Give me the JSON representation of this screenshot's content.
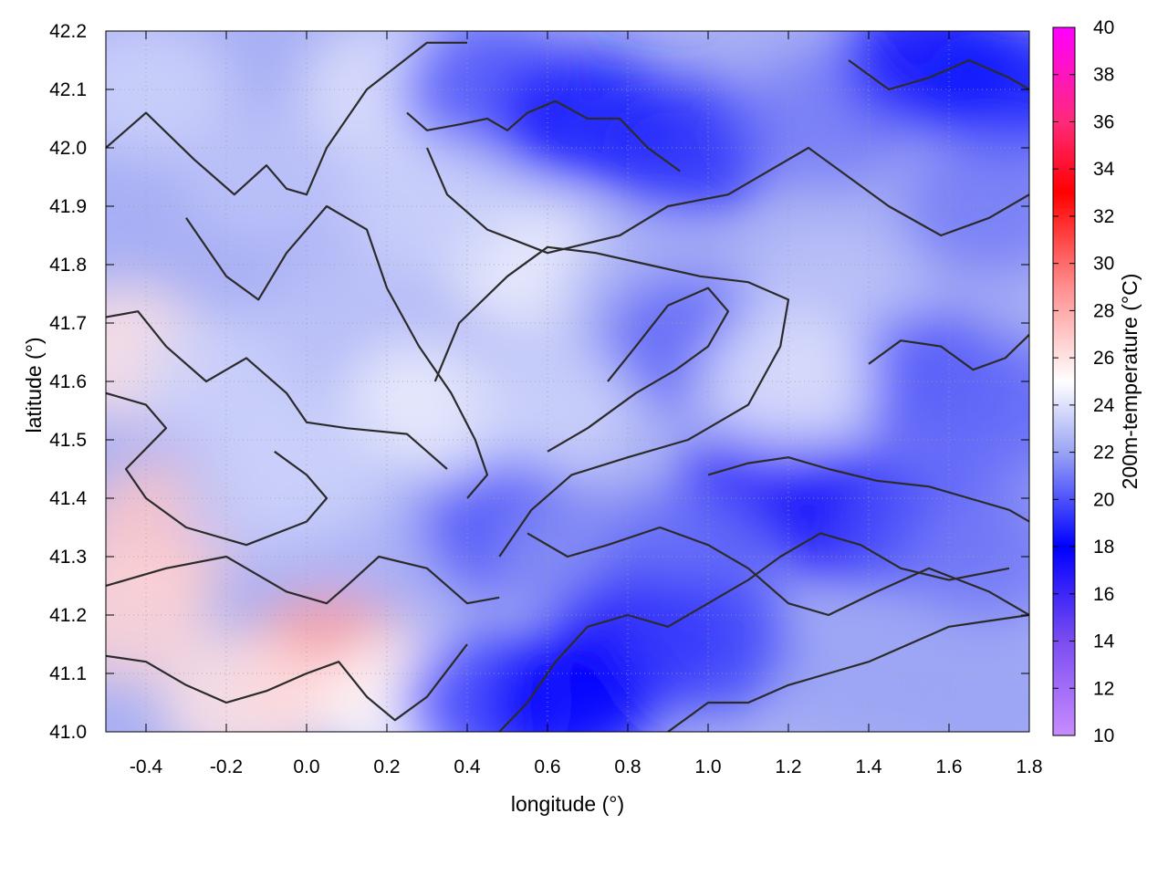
{
  "chart_data": {
    "type": "heatmap",
    "title": "",
    "xlabel": "longitude (°)",
    "ylabel": "latitude (°)",
    "colorbar_label": "200m-temperature (°C)",
    "xlim": [
      -0.5,
      1.8
    ],
    "ylim": [
      41.0,
      42.2
    ],
    "clim": [
      10,
      40
    ],
    "grid": true,
    "x_ticks": [
      "-0.4",
      "-0.2",
      "0.0",
      "0.2",
      "0.4",
      "0.6",
      "0.8",
      "1.0",
      "1.2",
      "1.4",
      "1.6",
      "1.8"
    ],
    "y_ticks": [
      "41.0",
      "41.1",
      "41.2",
      "41.3",
      "41.4",
      "41.5",
      "41.6",
      "41.7",
      "41.8",
      "41.9",
      "42.0",
      "42.1",
      "42.2"
    ],
    "colorbar_ticks": [
      "10",
      "12",
      "14",
      "16",
      "18",
      "20",
      "22",
      "24",
      "26",
      "28",
      "30",
      "32",
      "34",
      "36",
      "38",
      "40"
    ],
    "colormap": [
      {
        "value": 10,
        "color": "#c88cff"
      },
      {
        "value": 14,
        "color": "#7b4df0"
      },
      {
        "value": 18,
        "color": "#0000ff"
      },
      {
        "value": 22,
        "color": "#9aa4f4"
      },
      {
        "value": 25,
        "color": "#ffffff"
      },
      {
        "value": 29,
        "color": "#ff8e8e"
      },
      {
        "value": 33,
        "color": "#ff0000"
      },
      {
        "value": 36,
        "color": "#ff2a7a"
      },
      {
        "value": 40,
        "color": "#ff00ff"
      }
    ],
    "temperature_samples": [
      {
        "lon": -0.4,
        "lat": 42.1,
        "t": 23.5
      },
      {
        "lon": -0.1,
        "lat": 41.95,
        "t": 23.0
      },
      {
        "lon": 0.2,
        "lat": 42.1,
        "t": 24.0
      },
      {
        "lon": 0.45,
        "lat": 42.1,
        "t": 20.0
      },
      {
        "lon": 0.7,
        "lat": 42.05,
        "t": 18.5
      },
      {
        "lon": 0.95,
        "lat": 42.0,
        "t": 19.0
      },
      {
        "lon": 1.3,
        "lat": 42.05,
        "t": 21.0
      },
      {
        "lon": 1.55,
        "lat": 42.15,
        "t": 17.5
      },
      {
        "lon": 1.75,
        "lat": 42.1,
        "t": 18.5
      },
      {
        "lon": 1.7,
        "lat": 41.9,
        "t": 21.0
      },
      {
        "lon": 0.55,
        "lat": 41.8,
        "t": 24.5
      },
      {
        "lon": 0.85,
        "lat": 41.75,
        "t": 22.5
      },
      {
        "lon": 0.95,
        "lat": 41.67,
        "t": 20.5
      },
      {
        "lon": 1.3,
        "lat": 41.75,
        "t": 23.0
      },
      {
        "lon": 1.55,
        "lat": 41.6,
        "t": 20.0
      },
      {
        "lon": 1.75,
        "lat": 41.55,
        "t": 20.5
      },
      {
        "lon": -0.45,
        "lat": 41.65,
        "t": 26.0
      },
      {
        "lon": -0.2,
        "lat": 41.6,
        "t": 23.5
      },
      {
        "lon": 0.1,
        "lat": 41.7,
        "t": 23.0
      },
      {
        "lon": 0.3,
        "lat": 41.55,
        "t": 24.5
      },
      {
        "lon": 0.6,
        "lat": 41.55,
        "t": 23.5
      },
      {
        "lon": 1.15,
        "lat": 41.42,
        "t": 17.0
      },
      {
        "lon": 1.35,
        "lat": 41.37,
        "t": 17.0
      },
      {
        "lon": 1.55,
        "lat": 41.35,
        "t": 20.0
      },
      {
        "lon": 1.7,
        "lat": 41.3,
        "t": 21.0
      },
      {
        "lon": -0.35,
        "lat": 41.35,
        "t": 27.0
      },
      {
        "lon": -0.45,
        "lat": 41.2,
        "t": 26.5
      },
      {
        "lon": -0.1,
        "lat": 41.4,
        "t": 23.0
      },
      {
        "lon": 0.2,
        "lat": 41.35,
        "t": 22.5
      },
      {
        "lon": 0.5,
        "lat": 41.35,
        "t": 20.0
      },
      {
        "lon": 0.7,
        "lat": 41.3,
        "t": 21.5
      },
      {
        "lon": 0.95,
        "lat": 41.3,
        "t": 20.5
      },
      {
        "lon": 0.8,
        "lat": 41.15,
        "t": 17.0
      },
      {
        "lon": 1.0,
        "lat": 41.15,
        "t": 19.5
      },
      {
        "lon": 0.05,
        "lat": 41.12,
        "t": 28.5
      },
      {
        "lon": -0.15,
        "lat": 41.05,
        "t": 26.0
      },
      {
        "lon": 0.25,
        "lat": 41.05,
        "t": 25.0
      },
      {
        "lon": 0.45,
        "lat": 41.05,
        "t": 19.5
      },
      {
        "lon": 0.65,
        "lat": 41.05,
        "t": 18.0
      },
      {
        "lon": 1.4,
        "lat": 41.1,
        "t": 22.0
      },
      {
        "lon": 1.7,
        "lat": 41.05,
        "t": 22.0
      },
      {
        "lon": 1.2,
        "lat": 41.6,
        "t": 24.0
      },
      {
        "lon": 0.3,
        "lat": 41.9,
        "t": 23.5
      },
      {
        "lon": 0.0,
        "lat": 41.45,
        "t": 23.5
      }
    ],
    "contour_lines": [
      [
        [
          -0.5,
          42.0
        ],
        [
          -0.4,
          42.06
        ],
        [
          -0.28,
          41.98
        ],
        [
          -0.18,
          41.92
        ],
        [
          -0.1,
          41.97
        ],
        [
          -0.05,
          41.93
        ],
        [
          0.0,
          41.92
        ],
        [
          0.05,
          42.0
        ],
        [
          0.15,
          42.1
        ],
        [
          0.3,
          42.18
        ],
        [
          0.4,
          42.18
        ]
      ],
      [
        [
          -0.3,
          41.88
        ],
        [
          -0.2,
          41.78
        ],
        [
          -0.12,
          41.74
        ],
        [
          -0.05,
          41.82
        ],
        [
          0.05,
          41.9
        ],
        [
          0.15,
          41.86
        ],
        [
          0.2,
          41.76
        ],
        [
          0.28,
          41.66
        ],
        [
          0.36,
          41.58
        ],
        [
          0.42,
          41.5
        ],
        [
          0.45,
          41.44
        ],
        [
          0.4,
          41.4
        ]
      ],
      [
        [
          -0.5,
          41.71
        ],
        [
          -0.42,
          41.72
        ],
        [
          -0.35,
          41.66
        ],
        [
          -0.25,
          41.6
        ],
        [
          -0.15,
          41.64
        ],
        [
          -0.05,
          41.58
        ],
        [
          0.0,
          41.53
        ],
        [
          0.1,
          41.52
        ],
        [
          0.25,
          41.51
        ],
        [
          0.35,
          41.45
        ]
      ],
      [
        [
          -0.5,
          41.58
        ],
        [
          -0.4,
          41.56
        ],
        [
          -0.35,
          41.52
        ],
        [
          -0.45,
          41.45
        ],
        [
          -0.4,
          41.4
        ],
        [
          -0.3,
          41.35
        ],
        [
          -0.15,
          41.32
        ],
        [
          0.0,
          41.36
        ],
        [
          0.05,
          41.4
        ],
        [
          0.0,
          41.44
        ],
        [
          -0.08,
          41.48
        ]
      ],
      [
        [
          -0.5,
          41.25
        ],
        [
          -0.35,
          41.28
        ],
        [
          -0.2,
          41.3
        ],
        [
          -0.05,
          41.24
        ],
        [
          0.05,
          41.22
        ],
        [
          0.1,
          41.25
        ],
        [
          0.18,
          41.3
        ],
        [
          0.3,
          41.28
        ],
        [
          0.4,
          41.22
        ],
        [
          0.48,
          41.23
        ]
      ],
      [
        [
          -0.5,
          41.13
        ],
        [
          -0.4,
          41.12
        ],
        [
          -0.3,
          41.08
        ],
        [
          -0.2,
          41.05
        ],
        [
          -0.1,
          41.07
        ],
        [
          0.0,
          41.1
        ],
        [
          0.08,
          41.12
        ],
        [
          0.15,
          41.06
        ],
        [
          0.22,
          41.02
        ],
        [
          0.3,
          41.06
        ],
        [
          0.4,
          41.15
        ]
      ],
      [
        [
          0.32,
          41.6
        ],
        [
          0.38,
          41.7
        ],
        [
          0.5,
          41.78
        ],
        [
          0.6,
          41.83
        ],
        [
          0.72,
          41.82
        ],
        [
          0.85,
          41.8
        ],
        [
          0.98,
          41.78
        ],
        [
          1.1,
          41.77
        ],
        [
          1.2,
          41.74
        ],
        [
          1.18,
          41.66
        ],
        [
          1.1,
          41.56
        ],
        [
          0.95,
          41.5
        ],
        [
          0.8,
          41.47
        ],
        [
          0.66,
          41.44
        ],
        [
          0.56,
          41.38
        ],
        [
          0.48,
          41.3
        ]
      ],
      [
        [
          0.3,
          42.0
        ],
        [
          0.35,
          41.92
        ],
        [
          0.45,
          41.86
        ],
        [
          0.6,
          41.82
        ],
        [
          0.78,
          41.85
        ],
        [
          0.9,
          41.9
        ],
        [
          1.05,
          41.92
        ],
        [
          1.15,
          41.96
        ],
        [
          1.25,
          42.0
        ],
        [
          1.35,
          41.95
        ],
        [
          1.45,
          41.9
        ],
        [
          1.58,
          41.85
        ],
        [
          1.7,
          41.88
        ],
        [
          1.8,
          41.92
        ]
      ],
      [
        [
          1.0,
          41.44
        ],
        [
          1.1,
          41.46
        ],
        [
          1.2,
          41.47
        ],
        [
          1.3,
          41.45
        ],
        [
          1.42,
          41.43
        ],
        [
          1.55,
          41.42
        ],
        [
          1.65,
          41.4
        ],
        [
          1.75,
          41.38
        ],
        [
          1.8,
          41.36
        ]
      ],
      [
        [
          0.55,
          41.34
        ],
        [
          0.65,
          41.3
        ],
        [
          0.75,
          41.32
        ],
        [
          0.88,
          41.35
        ],
        [
          1.0,
          41.32
        ],
        [
          1.1,
          41.28
        ],
        [
          1.2,
          41.22
        ],
        [
          1.3,
          41.2
        ],
        [
          1.42,
          41.24
        ],
        [
          1.55,
          41.28
        ],
        [
          1.7,
          41.24
        ],
        [
          1.8,
          41.2
        ]
      ],
      [
        [
          0.48,
          41.0
        ],
        [
          0.55,
          41.05
        ],
        [
          0.62,
          41.12
        ],
        [
          0.7,
          41.18
        ],
        [
          0.8,
          41.2
        ],
        [
          0.9,
          41.18
        ],
        [
          1.0,
          41.22
        ],
        [
          1.1,
          41.26
        ],
        [
          1.18,
          41.3
        ],
        [
          1.28,
          41.34
        ],
        [
          1.38,
          41.32
        ],
        [
          1.48,
          41.28
        ],
        [
          1.6,
          41.26
        ],
        [
          1.75,
          41.28
        ]
      ],
      [
        [
          0.9,
          41.0
        ],
        [
          1.0,
          41.05
        ],
        [
          1.1,
          41.05
        ],
        [
          1.2,
          41.08
        ],
        [
          1.3,
          41.1
        ],
        [
          1.4,
          41.12
        ],
        [
          1.5,
          41.15
        ],
        [
          1.6,
          41.18
        ],
        [
          1.7,
          41.19
        ],
        [
          1.8,
          41.2
        ]
      ],
      [
        [
          0.6,
          41.48
        ],
        [
          0.7,
          41.52
        ],
        [
          0.82,
          41.58
        ],
        [
          0.92,
          41.62
        ],
        [
          1.0,
          41.66
        ],
        [
          1.05,
          41.72
        ],
        [
          1.0,
          41.76
        ],
        [
          0.9,
          41.73
        ],
        [
          0.82,
          41.66
        ],
        [
          0.75,
          41.6
        ]
      ],
      [
        [
          1.4,
          41.63
        ],
        [
          1.48,
          41.67
        ],
        [
          1.58,
          41.66
        ],
        [
          1.66,
          41.62
        ],
        [
          1.74,
          41.64
        ],
        [
          1.8,
          41.68
        ]
      ],
      [
        [
          1.35,
          42.15
        ],
        [
          1.45,
          42.1
        ],
        [
          1.55,
          42.12
        ],
        [
          1.65,
          42.15
        ],
        [
          1.75,
          42.12
        ],
        [
          1.8,
          42.1
        ]
      ],
      [
        [
          0.25,
          42.06
        ],
        [
          0.3,
          42.03
        ],
        [
          0.38,
          42.04
        ],
        [
          0.45,
          42.05
        ],
        [
          0.5,
          42.03
        ],
        [
          0.55,
          42.06
        ],
        [
          0.62,
          42.08
        ],
        [
          0.7,
          42.05
        ],
        [
          0.78,
          42.05
        ],
        [
          0.85,
          42.0
        ],
        [
          0.93,
          41.96
        ]
      ]
    ]
  }
}
